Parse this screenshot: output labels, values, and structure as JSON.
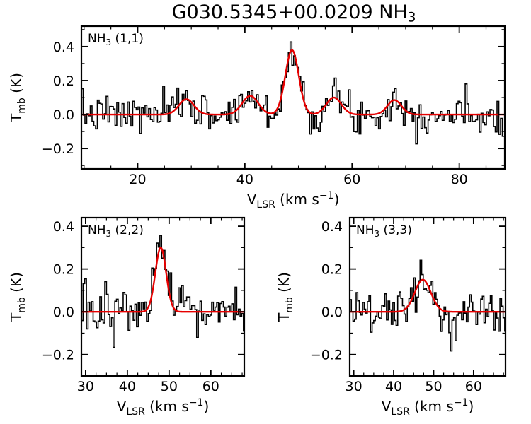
{
  "title": {
    "text": "G030.5345+00.0209 NH",
    "sub": "3"
  },
  "axes": {
    "ylabel": {
      "main": "T",
      "sub": "mb",
      "rest": " (K)"
    },
    "xlabel": {
      "main": "V",
      "sub": "LSR",
      "rest": " (km s",
      "sup": "−1",
      "end": ")"
    }
  },
  "colors": {
    "spectrum": "#000000",
    "fit": "#e60000",
    "axis": "#000000",
    "background": "#ffffff"
  },
  "chart_data": [
    {
      "id": "nh3-1-1",
      "type": "histogram",
      "panel_label": {
        "main": "NH",
        "sub": "3",
        "rest": " (1,1)"
      },
      "xlim": [
        9.5,
        88.5
      ],
      "ylim": [
        -0.32,
        0.52
      ],
      "xticks": [
        20,
        40,
        60,
        80
      ],
      "yticks": [
        -0.2,
        0,
        0.2,
        0.4
      ],
      "xminor": 5,
      "yminor": 0.1,
      "bin_width": 0.33,
      "noise_sigma": 0.055,
      "noise_seed": 7,
      "fit_components": [
        {
          "center": 29.1,
          "amplitude": 0.09,
          "sigma": 1.4
        },
        {
          "center": 41.0,
          "amplitude": 0.11,
          "sigma": 1.5
        },
        {
          "center": 48.8,
          "amplitude": 0.38,
          "sigma": 1.25
        },
        {
          "center": 56.6,
          "amplitude": 0.1,
          "sigma": 1.4
        },
        {
          "center": 67.9,
          "amplitude": 0.085,
          "sigma": 1.3
        }
      ]
    },
    {
      "id": "nh3-2-2",
      "type": "histogram",
      "panel_label": {
        "main": "NH",
        "sub": "3",
        "rest": " (2,2)"
      },
      "xlim": [
        29,
        68
      ],
      "ylim": [
        -0.3,
        0.44
      ],
      "xticks": [
        30,
        40,
        50,
        60
      ],
      "yticks": [
        -0.2,
        0,
        0.2,
        0.4
      ],
      "xminor": 2.5,
      "yminor": 0.1,
      "bin_width": 0.4,
      "noise_sigma": 0.06,
      "noise_seed": 13,
      "fit_components": [
        {
          "center": 48.0,
          "amplitude": 0.3,
          "sigma": 1.3
        }
      ]
    },
    {
      "id": "nh3-3-3",
      "type": "histogram",
      "panel_label": {
        "main": "NH",
        "sub": "3",
        "rest": " (3,3)"
      },
      "xlim": [
        29,
        68
      ],
      "ylim": [
        -0.3,
        0.44
      ],
      "xticks": [
        30,
        40,
        50,
        60
      ],
      "yticks": [
        -0.2,
        0,
        0.2,
        0.4
      ],
      "xminor": 2.5,
      "yminor": 0.1,
      "bin_width": 0.4,
      "noise_sigma": 0.055,
      "noise_seed": 29,
      "fit_components": [
        {
          "center": 47.3,
          "amplitude": 0.15,
          "sigma": 2.0
        }
      ]
    }
  ]
}
